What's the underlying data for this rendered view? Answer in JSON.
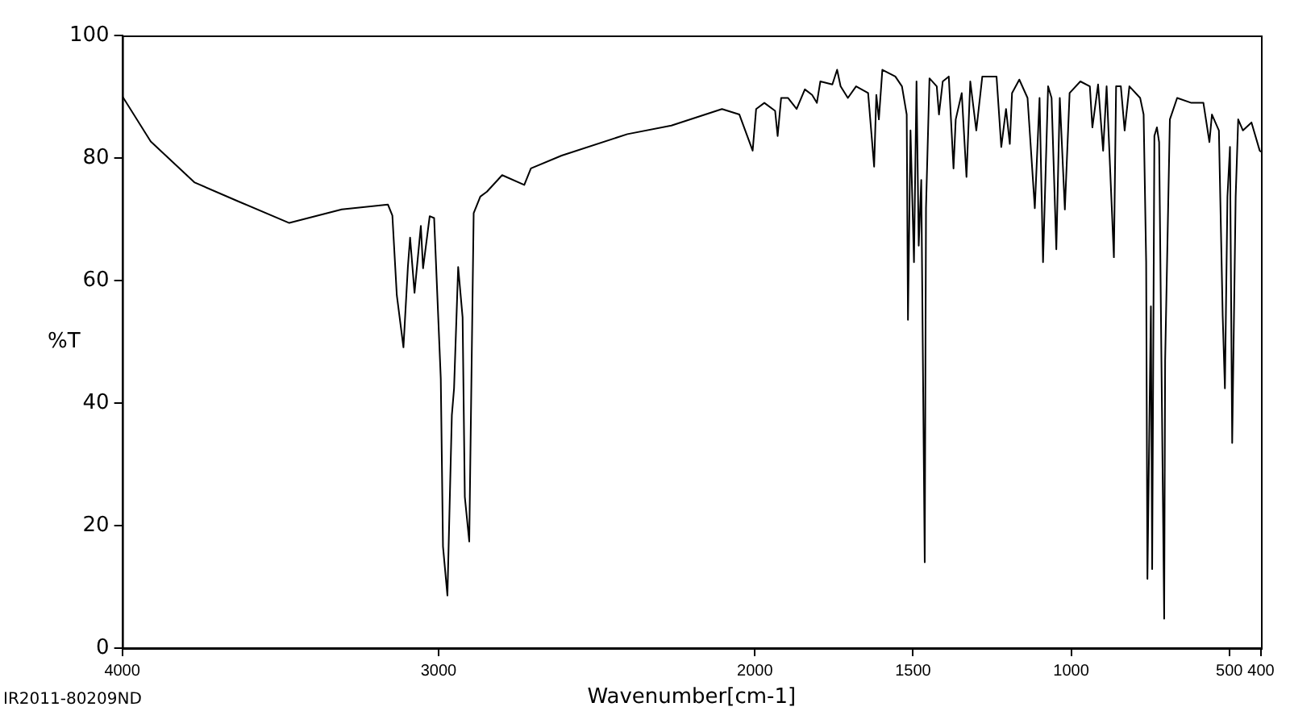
{
  "chart_data": {
    "type": "line",
    "xlabel": "Wavenumber[cm-1]",
    "ylabel": "%T",
    "annotations": [
      "IR2011-80209ND"
    ],
    "xlim": [
      4000,
      400
    ],
    "xticks": [
      4000,
      3000,
      2000,
      1500,
      1000,
      500,
      400
    ],
    "ylim": [
      0,
      100
    ],
    "yticks": [
      0,
      20,
      40,
      60,
      80,
      100
    ],
    "grid": false,
    "legend": false,
    "marker": "none",
    "line_style": "solid",
    "series": [
      {
        "color": "#000000",
        "x": [
          4000,
          3910,
          3771,
          3632,
          3472,
          3306,
          3160,
          3146,
          3132,
          3111,
          3097,
          3090,
          3076,
          3056,
          3049,
          3028,
          3014,
          2993,
          2986,
          2972,
          2958,
          2951,
          2938,
          2924,
          2917,
          2903,
          2889,
          2868,
          2847,
          2799,
          2729,
          2708,
          2611,
          2403,
          2264,
          2104,
          2049,
          2007,
          1996,
          1970,
          1936,
          1928,
          1917,
          1895,
          1868,
          1842,
          1819,
          1804,
          1793,
          1755,
          1740,
          1729,
          1706,
          1680,
          1642,
          1623,
          1616,
          1608,
          1597,
          1556,
          1535,
          1520,
          1516,
          1508,
          1497,
          1489,
          1482,
          1474,
          1463,
          1459,
          1448,
          1425,
          1418,
          1406,
          1387,
          1372,
          1365,
          1346,
          1331,
          1319,
          1300,
          1281,
          1236,
          1221,
          1206,
          1194,
          1187,
          1164,
          1138,
          1115,
          1100,
          1089,
          1073,
          1062,
          1047,
          1036,
          1020,
          1005,
          971,
          941,
          933,
          915,
          899,
          888,
          865,
          858,
          843,
          831,
          816,
          782,
          771,
          763,
          759,
          748,
          744,
          737,
          729,
          722,
          706,
          703,
          688,
          665,
          620,
          582,
          563,
          555,
          533,
          521,
          514,
          506,
          498,
          491,
          480,
          472,
          457,
          430,
          404,
          400
        ],
        "values": [
          90.1,
          82.7,
          76.0,
          72.9,
          69.4,
          71.6,
          72.4,
          70.6,
          57.6,
          49.1,
          62.2,
          67,
          58,
          68.9,
          62,
          70.5,
          70.2,
          44,
          16.6,
          8.6,
          38,
          42.4,
          62.2,
          54,
          24.7,
          17.4,
          71,
          73.7,
          74.5,
          77.2,
          75.6,
          78.3,
          80.4,
          83.9,
          85.3,
          88,
          87.1,
          81.2,
          88,
          89,
          87.7,
          83.6,
          89.8,
          89.8,
          88,
          91.2,
          90.3,
          89,
          92.5,
          92,
          94.4,
          91.7,
          89.8,
          91.7,
          90.6,
          78.6,
          90.3,
          86.3,
          94.4,
          93.3,
          91.7,
          87.1,
          53.6,
          84.5,
          63,
          92.5,
          65.7,
          76.4,
          14,
          71.8,
          93,
          91.7,
          87.1,
          92.5,
          93.3,
          78.3,
          86.3,
          90.6,
          76.9,
          92.5,
          84.5,
          93.3,
          93.3,
          81.8,
          88,
          82.3,
          90.6,
          92.8,
          89.8,
          71.8,
          89.8,
          63,
          91.7,
          89.8,
          65.1,
          89.8,
          71.6,
          90.6,
          92.5,
          91.7,
          85,
          92,
          81.2,
          91.7,
          63.8,
          91.7,
          91.7,
          84.5,
          91.7,
          89.8,
          87.1,
          63,
          11.3,
          55.8,
          12.9,
          83.6,
          85,
          82.6,
          4.8,
          46.9,
          86.3,
          89.8,
          89,
          89,
          82.6,
          87.1,
          84.5,
          54.2,
          42.4,
          73.7,
          81.8,
          33.5,
          73.7,
          86.3,
          84.5,
          85.8,
          81.2,
          81
        ]
      }
    ]
  }
}
